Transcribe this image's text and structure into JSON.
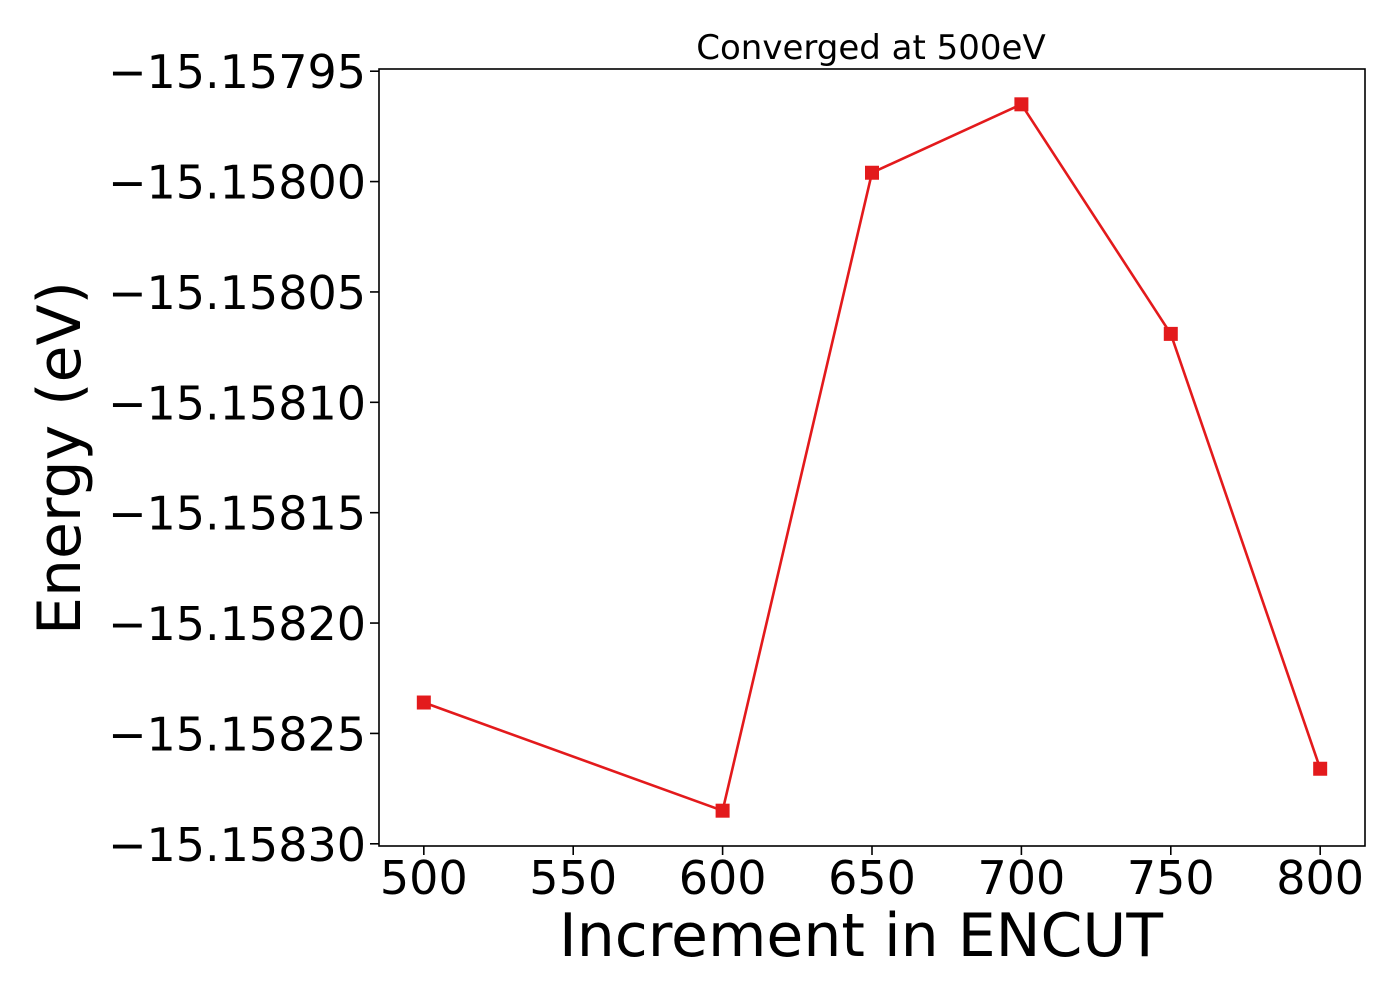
{
  "chart_data": {
    "type": "line",
    "title": "Converged at 500eV",
    "xlabel": "Increment in ENCUT",
    "ylabel": "Energy (eV)",
    "x": [
      500,
      600,
      650,
      700,
      750,
      800
    ],
    "series": [
      {
        "values": [
          -15.158236,
          -15.158285,
          -15.157996,
          -15.157965,
          -15.158069,
          -15.158266
        ],
        "color": "#e31a1c",
        "marker": "square"
      }
    ],
    "xlim": [
      485,
      815
    ],
    "ylim": [
      -15.158301,
      -15.157949
    ],
    "xticks": [
      500,
      550,
      600,
      650,
      700,
      750,
      800
    ],
    "xtick_labels": [
      "500",
      "550",
      "600",
      "650",
      "700",
      "750",
      "800"
    ],
    "yticks": [
      -15.1583,
      -15.15825,
      -15.1582,
      -15.15815,
      -15.1581,
      -15.15805,
      -15.158,
      -15.15795
    ],
    "ytick_labels": [
      "−15.15830",
      "−15.15825",
      "−15.15820",
      "−15.15815",
      "−15.15810",
      "−15.15805",
      "−15.15800",
      "−15.15795"
    ],
    "grid": false,
    "legend": "none"
  }
}
